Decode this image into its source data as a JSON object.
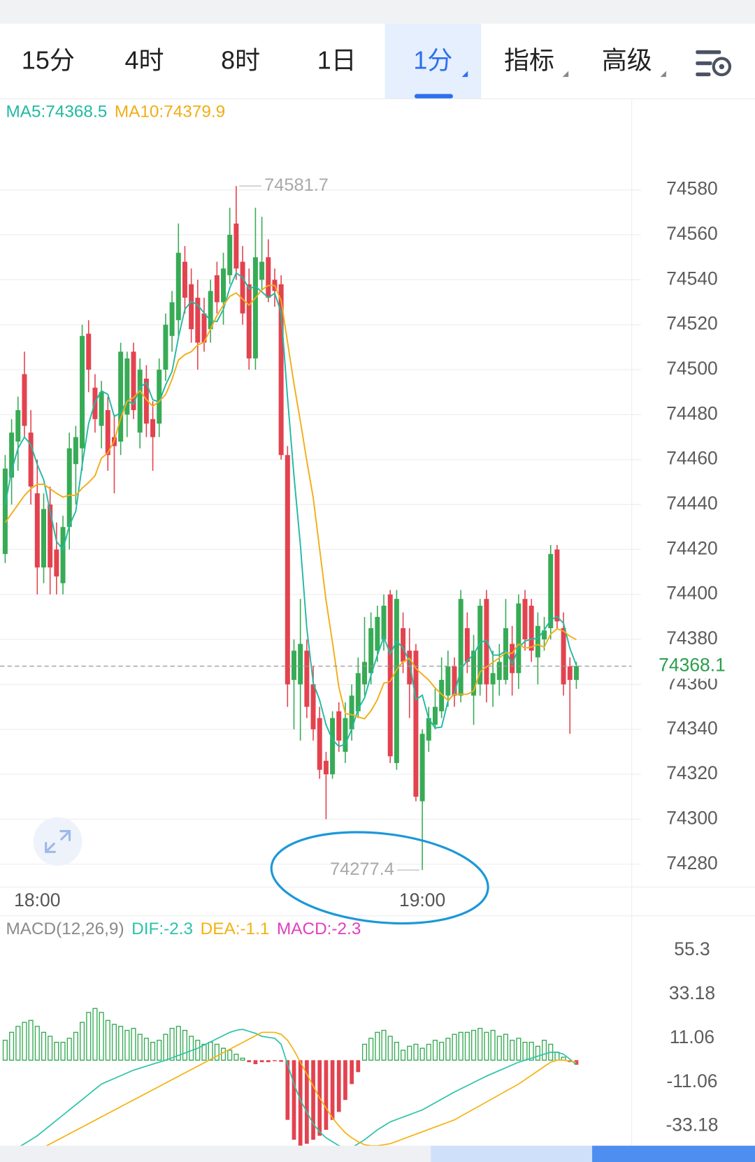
{
  "tabs": [
    "15分",
    "4时",
    "8时",
    "1日",
    "1分",
    "指标",
    "高级"
  ],
  "active_tab": "1分",
  "chart_data": [
    {
      "type": "candlestick",
      "categories": [
        null,
        null,
        null,
        null,
        null,
        "18:00",
        null,
        null,
        null,
        null,
        null,
        null,
        null,
        null,
        null,
        null,
        null,
        null,
        null,
        null,
        null,
        null,
        null,
        null,
        null,
        null,
        null,
        null,
        null,
        null,
        null,
        null,
        null,
        null,
        null,
        null,
        null,
        null,
        null,
        null,
        null,
        null,
        null,
        null,
        null,
        null,
        null,
        null,
        null,
        null,
        null,
        null,
        null,
        null,
        null,
        null,
        null,
        null,
        null,
        null,
        null,
        null,
        null,
        null,
        null,
        "19:00",
        null,
        null,
        null,
        null,
        null,
        null,
        null,
        null,
        null,
        null,
        null,
        null,
        null,
        null,
        null,
        null,
        null,
        null,
        null,
        null,
        null,
        null,
        null,
        null
      ],
      "open": [
        74418,
        74452,
        74468,
        74498,
        74472,
        74445,
        74412,
        74440,
        74420,
        74405,
        74430,
        74458,
        74465,
        74516,
        74492,
        74475,
        74482,
        74470,
        74468,
        74480,
        74508,
        74472,
        74496,
        74478,
        74476,
        74500,
        74515,
        74522,
        74548,
        74538,
        74532,
        74525,
        74518,
        74542,
        74530,
        74542,
        74565,
        74548,
        74538,
        74505,
        74540,
        74550,
        74540,
        74538,
        74462,
        74362,
        74360,
        74375,
        74360,
        74345,
        74326,
        74320,
        74348,
        74330,
        74340,
        74348,
        74360,
        74365,
        74375,
        74380,
        74400,
        74325,
        74385,
        74375,
        74375,
        74308,
        74335,
        74342,
        74348,
        74355,
        74368,
        74355,
        74385,
        74355,
        74360,
        74398,
        74360,
        74362,
        74362,
        74378,
        74365,
        74398,
        74395,
        74372,
        74380,
        74385,
        74420,
        74385,
        74368,
        74362
      ],
      "high": [
        74462,
        74478,
        74488,
        74508,
        74482,
        74460,
        74445,
        74448,
        74432,
        74435,
        74472,
        74475,
        74520,
        74522,
        74498,
        74495,
        74488,
        74480,
        74512,
        74508,
        74512,
        74505,
        74502,
        74486,
        74505,
        74525,
        74535,
        74565,
        74555,
        74545,
        74540,
        74532,
        74540,
        74548,
        74552,
        74572,
        74581.7,
        74555,
        74545,
        74572,
        74568,
        74558,
        74545,
        74542,
        74466,
        74380,
        74398,
        74380,
        74368,
        74350,
        74330,
        74348,
        74352,
        74352,
        74360,
        74372,
        74390,
        74392,
        74395,
        74400,
        74402,
        74402,
        74392,
        74385,
        74378,
        74340,
        74350,
        74358,
        74372,
        74375,
        74372,
        74402,
        74392,
        74382,
        74398,
        74402,
        74375,
        74378,
        74398,
        74386,
        74400,
        74402,
        74398,
        74392,
        74390,
        74422,
        74422,
        74392,
        74372,
        74370
      ],
      "low": [
        74414,
        74440,
        74455,
        74470,
        74440,
        74400,
        74405,
        74400,
        74400,
        74400,
        74420,
        74440,
        74455,
        74490,
        74472,
        74465,
        74455,
        74445,
        74462,
        74470,
        74478,
        74465,
        74470,
        74455,
        74470,
        74495,
        74508,
        74515,
        74525,
        74512,
        74500,
        74508,
        74512,
        74525,
        74520,
        74538,
        74540,
        74520,
        74500,
        74500,
        74535,
        74530,
        74528,
        74460,
        74350,
        74340,
        74335,
        74345,
        74335,
        74318,
        74300,
        74318,
        74330,
        74325,
        74335,
        74345,
        74355,
        74360,
        74370,
        74375,
        74325,
        74322,
        74365,
        74345,
        74308,
        74277.4,
        74330,
        74340,
        74345,
        74350,
        74350,
        74352,
        74365,
        74342,
        74355,
        74352,
        74350,
        74355,
        74360,
        74355,
        74358,
        74375,
        74370,
        74360,
        74375,
        74380,
        74385,
        74355,
        74338,
        74358
      ],
      "close": [
        74456,
        74472,
        74482,
        74475,
        74448,
        74412,
        74438,
        74412,
        74408,
        74430,
        74465,
        74470,
        74515,
        74500,
        74478,
        74490,
        74462,
        74466,
        74508,
        74505,
        74482,
        74500,
        74476,
        74470,
        74500,
        74520,
        74530,
        74552,
        74532,
        74518,
        74512,
        74512,
        74535,
        74530,
        74545,
        74560,
        74545,
        74525,
        74505,
        74550,
        74548,
        74532,
        74535,
        74462,
        74360,
        74375,
        74378,
        74350,
        74340,
        74322,
        74320,
        74345,
        74335,
        74345,
        74355,
        74365,
        74370,
        74385,
        74390,
        74395,
        74328,
        74398,
        74370,
        74360,
        74310,
        74338,
        74345,
        74350,
        74362,
        74368,
        74355,
        74398,
        74370,
        74375,
        74395,
        74360,
        74365,
        74370,
        74385,
        74365,
        74396,
        74380,
        74375,
        74386,
        74384,
        74418,
        74388,
        74360,
        74362,
        74368.1
      ],
      "up_color": "#37ab55",
      "down_color": "#e3424f",
      "series": [
        {
          "name": "MA5:74368.5",
          "color": "#22b9a2",
          "values": [
            74440,
            74455,
            74465,
            74470,
            74466.6,
            74457.8,
            74451,
            74437,
            74423.6,
            74420,
            74430.6,
            74437,
            74457.6,
            74476,
            74485.6,
            74490.6,
            74489,
            74479.2,
            74480.8,
            74486.2,
            74484.6,
            74492.2,
            74494.2,
            74486.6,
            74485.6,
            74493.2,
            74499.2,
            74514.4,
            74526.8,
            74530.4,
            74528.8,
            74525.2,
            74521.8,
            74521.4,
            74526.8,
            74536.4,
            74543,
            74541,
            74536,
            74537,
            74534.6,
            74532,
            74534,
            74525.4,
            74487.4,
            74452.8,
            74422,
            74385,
            74360.6,
            74353,
            74342,
            74335.4,
            74332.4,
            74333.4,
            74340,
            74349,
            74354,
            74364,
            74373,
            74381,
            74373.6,
            74379.2,
            74376.2,
            74370.2,
            74353.2,
            74355.2,
            74344.6,
            74340.6,
            74341,
            74352.6,
            74356,
            74366.6,
            74370.6,
            74373.2,
            74378.6,
            74379.6,
            74373,
            74373,
            74375,
            74369,
            74376.2,
            74379.2,
            74380.2,
            74380.4,
            74384.2,
            74388.6,
            74390.2,
            74387.2,
            74376,
            74368.5
          ]
        },
        {
          "name": "MA10:74379.9",
          "color": "#f2ad17",
          "values": [
            74432,
            74436,
            74440,
            74444,
            74447,
            74449,
            74449,
            74447,
            74445,
            74443.3,
            74444.2,
            74444,
            74447.3,
            74449.8,
            74452.8,
            74460.6,
            74463,
            74468.4,
            74478.4,
            74485.9,
            74487.6,
            74490.6,
            74486.7,
            74483.7,
            74485.9,
            74488.9,
            74495.7,
            74504.3,
            74506.7,
            74508,
            74511,
            74512.2,
            74518.1,
            74524.1,
            74528.6,
            74532.6,
            74534.1,
            74531.4,
            74528.7,
            74531.9,
            74535.5,
            74537.5,
            74537.5,
            74530.7,
            74512.2,
            74493.7,
            74477,
            74459.5,
            74443,
            74420.2,
            74397.4,
            74378.7,
            74358.7,
            74347,
            74346.5,
            74345.5,
            74344.7,
            74348.2,
            74353.2,
            74360.5,
            74361.3,
            74366.6,
            74370.1,
            74371.6,
            74367.1,
            74364.4,
            74361.9,
            74358.4,
            74355.6,
            74352.9,
            74355.6,
            74355.6,
            74355.6,
            74357.1,
            74365.6,
            74367.8,
            74369.8,
            74371.8,
            74374.1,
            74373.8,
            74377.9,
            74376.1,
            74376.6,
            74377.7,
            74376.6,
            74382.4,
            74384.7,
            74383.7,
            74381.4,
            74379.9
          ]
        }
      ],
      "ylim": [
        74270,
        74620
      ],
      "yticks": [
        74280,
        74300,
        74320,
        74340,
        74360,
        74380,
        74400,
        74420,
        74440,
        74460,
        74480,
        74500,
        74520,
        74540,
        74560,
        74580
      ],
      "grid": true
    },
    {
      "type": "macd",
      "title": "MACD(12,26,9)",
      "series": [
        {
          "name": "DIF:-2.3",
          "color": "#2cc3a8",
          "values": [
            -48,
            -46,
            -44,
            -42,
            -40,
            -38,
            -35.4,
            -32.8,
            -30.2,
            -27.6,
            -25,
            -22.4,
            -19.8,
            -17.2,
            -14.6,
            -12,
            -10.6,
            -9.2,
            -7.8,
            -6.4,
            -5,
            -4,
            -3,
            -2,
            -1,
            0,
            1.2,
            2.4,
            3.6,
            4.8,
            6,
            7.6,
            9.2,
            10.8,
            12.4,
            14,
            15,
            15.5,
            14.5,
            13.5,
            12,
            11.5,
            11,
            8,
            -2,
            -12,
            -20,
            -26,
            -32,
            -36,
            -39,
            -41,
            -43,
            -44,
            -44,
            -42,
            -40,
            -37.5,
            -35,
            -33,
            -31,
            -29.8,
            -28.6,
            -27.4,
            -26.2,
            -25,
            -23.2,
            -21.4,
            -19.6,
            -17.8,
            -16,
            -14.4,
            -12.8,
            -11.2,
            -9.6,
            -8,
            -6.6,
            -5.2,
            -3.8,
            -2.4,
            -1,
            0,
            1,
            2,
            3,
            4,
            4,
            3,
            0.5,
            -2.3
          ]
        },
        {
          "name": "DEA:-1.1",
          "color": "#f5b10f",
          "values": [
            -54,
            -52.3,
            -50.6,
            -48.9,
            -47.2,
            -45.5,
            -43.8,
            -42.1,
            -40.4,
            -38.7,
            -37,
            -35.3,
            -33.6,
            -31.9,
            -30.2,
            -28.5,
            -26.8,
            -25.1,
            -23.4,
            -21.7,
            -20,
            -18.3,
            -16.6,
            -14.9,
            -13.2,
            -11.5,
            -9.8,
            -8.1,
            -6.4,
            -4.7,
            -3,
            -1.3,
            0.4,
            2.1,
            3.8,
            5.5,
            7.2,
            8.9,
            10.6,
            12.3,
            14,
            14,
            14,
            13,
            10,
            5,
            -1,
            -7,
            -13,
            -19,
            -24,
            -29,
            -33,
            -36.5,
            -39,
            -41,
            -42.5,
            -43,
            -43,
            -42.5,
            -42,
            -40.8,
            -39.6,
            -38.4,
            -37.2,
            -36,
            -34.8,
            -33.6,
            -32.4,
            -31.2,
            -30,
            -28.2,
            -26.4,
            -24.6,
            -22.8,
            -21,
            -19.2,
            -17.4,
            -15.6,
            -13.8,
            -12,
            -9.8,
            -7.6,
            -5.4,
            -3.2,
            -1,
            0,
            0,
            -0.5,
            -1.1
          ]
        }
      ],
      "histogram": {
        "name": "MACD:-2.3",
        "color": "#e03fbf",
        "up_color": "#37ab55",
        "down_color": "#e3424f",
        "values": [
          10,
          14,
          17,
          19,
          20,
          17,
          14,
          12,
          9,
          9,
          11,
          14,
          19,
          24,
          26,
          24,
          20,
          18,
          17,
          15,
          16,
          13,
          11,
          9,
          10,
          13,
          16,
          17,
          15,
          12,
          10,
          8,
          9,
          8,
          6,
          5,
          3,
          1,
          -1,
          -2,
          -1,
          -1,
          -0.5,
          -0.8,
          -30,
          -40,
          -43,
          -42,
          -40,
          -38,
          -35,
          -30,
          -26,
          -20,
          -12,
          -6,
          8,
          11,
          14,
          15,
          12,
          9,
          5,
          7,
          8,
          6,
          8,
          10,
          9,
          11,
          13,
          14,
          14,
          15,
          16,
          14,
          15,
          12,
          13,
          10,
          11,
          9,
          9,
          7,
          10,
          8,
          4,
          1.5,
          -1,
          -2.3
        ]
      },
      "title_color": "#8a8a8a",
      "ylim": [
        -43,
        71.6
      ],
      "yticks": [
        55.3,
        33.18,
        11.06,
        -11.06,
        -33.18
      ],
      "grid": false
    }
  ]
}
